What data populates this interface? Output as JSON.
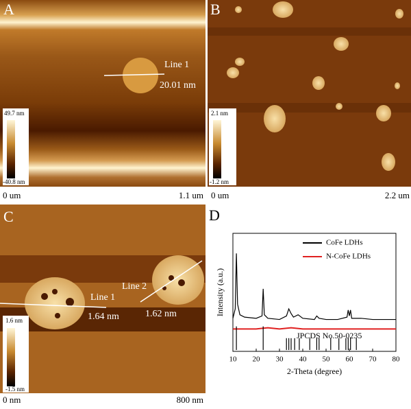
{
  "panels": [
    {
      "label": "A",
      "line_labels": [
        "Line 1"
      ],
      "measurements": [
        "20.01 nm"
      ],
      "colorbar": [
        "49.7 nm",
        "-40.8 nm"
      ],
      "scale": [
        "0 um",
        "1.1 um"
      ]
    },
    {
      "label": "B",
      "colorbar": [
        "2.1 nm",
        "-1.2 nm"
      ],
      "scale": [
        "0 um",
        "2.2 um"
      ]
    },
    {
      "label": "C",
      "line_labels": [
        "Line 1",
        "Line 2"
      ],
      "measurements": [
        "1.64 nm",
        "1.62 nm"
      ],
      "colorbar": [
        "1.6 nm",
        "-1.5 nm"
      ],
      "scale": [
        "0 nm",
        "800 nm"
      ]
    },
    {
      "label": "D"
    }
  ],
  "chart_data": {
    "type": "line",
    "xlabel": "2-Theta (degree)",
    "ylabel": "Intensity (a.u.)",
    "xlim": [
      10,
      80
    ],
    "xticks": [
      10,
      20,
      30,
      40,
      50,
      60,
      70,
      80
    ],
    "ylim": [
      0,
      100
    ],
    "legend": "upper right",
    "series": [
      {
        "name": "CoFe LDHs",
        "color": "#000000",
        "x": [
          10,
          11,
          11.5,
          12,
          13,
          15,
          20,
          22.5,
          23,
          23.5,
          25,
          30,
          33,
          34,
          35,
          36,
          38,
          40,
          45,
          46,
          47,
          50,
          55,
          59,
          59.5,
          60,
          60.5,
          61,
          65,
          70,
          75,
          80
        ],
        "values": [
          28,
          36,
          83,
          40,
          31,
          29,
          28,
          30,
          53,
          31,
          28,
          27,
          30,
          36,
          32,
          29,
          31,
          28,
          27,
          30,
          28,
          27,
          27,
          29,
          35,
          30,
          35,
          28,
          28,
          27,
          27,
          27
        ]
      },
      {
        "name": "N-CoFe LDHs",
        "color": "#e02020",
        "x": [
          10,
          15,
          20,
          25,
          30,
          35,
          40,
          45,
          50,
          55,
          60,
          65,
          70,
          75,
          80
        ],
        "values": [
          19,
          19,
          19,
          20,
          19,
          20,
          19,
          19,
          19,
          19,
          19,
          19,
          19,
          19,
          19
        ]
      }
    ],
    "reference": {
      "label": "JPCDS No.50-0235",
      "x": [
        11.5,
        23,
        33,
        34,
        35,
        36.5,
        38.5,
        43,
        46,
        47,
        52,
        55.5,
        58.5,
        59.5,
        60.5,
        63
      ],
      "values": [
        20,
        20,
        10,
        10,
        10,
        10,
        10,
        10,
        10,
        10,
        10,
        10,
        10,
        10,
        10,
        10
      ]
    }
  }
}
